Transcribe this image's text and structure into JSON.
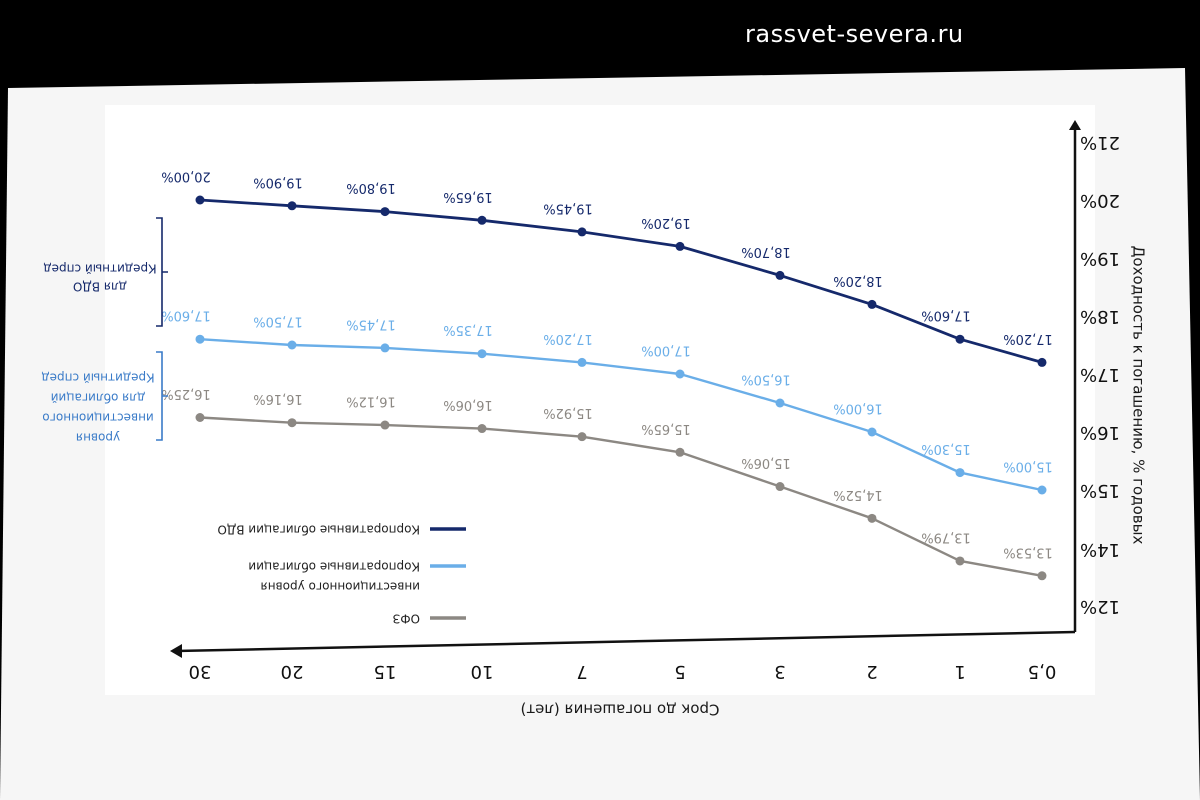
{
  "watermark": "rassvet-severa.ru",
  "chart_data": {
    "type": "line",
    "mirrored": true,
    "title": "",
    "xlabel": "Срок до погашения (лет)",
    "ylabel": "Доходность к погашению, % годовых",
    "categories": [
      "0,5",
      "1",
      "2",
      "3",
      "5",
      "7",
      "10",
      "15",
      "20",
      "30"
    ],
    "yticks": [
      "12%",
      "14%",
      "15%",
      "16%",
      "17%",
      "18%",
      "19%",
      "20%",
      "21%"
    ],
    "ylim": [
      12,
      21
    ],
    "grid": false,
    "legend_position": "bottom-left",
    "series": [
      {
        "name": "Корпоративные облигации ВДО",
        "color": "#15296b",
        "values": [
          17.2,
          17.6,
          18.2,
          18.7,
          19.2,
          19.45,
          19.65,
          19.8,
          19.9,
          20.0
        ],
        "labels": [
          "17,20%",
          "17,60%",
          "18,20%",
          "18,70%",
          "19,20%",
          "19,45%",
          "19,65%",
          "19,80%",
          "19,90%",
          "20,00%"
        ]
      },
      {
        "name": "Корпоративные облигации инвестиционного уровня",
        "color": "#6aaee8",
        "values": [
          15.0,
          15.3,
          16.0,
          16.5,
          17.0,
          17.2,
          17.35,
          17.45,
          17.5,
          17.6
        ],
        "labels": [
          "15,00%",
          "15,30%",
          "16,00%",
          "16,50%",
          "17,00%",
          "17,20%",
          "17,35%",
          "17,45%",
          "17,50%",
          "17,60%"
        ]
      },
      {
        "name": "ОФЗ",
        "color": "#8c8883",
        "values": [
          13.53,
          13.79,
          14.52,
          15.06,
          15.65,
          15.92,
          16.06,
          16.12,
          16.16,
          16.25
        ],
        "labels": [
          "13,53%",
          "13,79%",
          "14,52%",
          "15,06%",
          "15,65%",
          "15,92%",
          "16,06%",
          "16,12%",
          "16,16%",
          "16,25%"
        ]
      }
    ],
    "annotations": [
      {
        "text": "Кредитный спред для ВДО",
        "color": "#15296b"
      },
      {
        "text": "Кредитный спред для облигаций инвестиционного уровня",
        "color": "#3a7bc8"
      }
    ]
  }
}
